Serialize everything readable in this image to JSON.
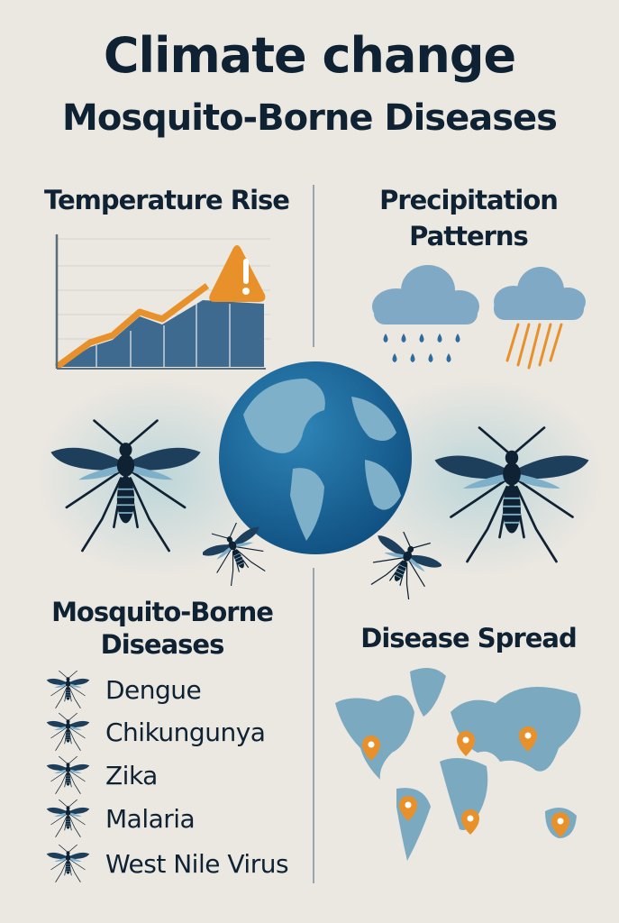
{
  "title": {
    "line1": "Climate change",
    "line2": "Mosquito-Borne Diseases"
  },
  "sections": {
    "temperature": {
      "heading": "Temperature Rise",
      "icon": "warning-icon"
    },
    "precipitation": {
      "heading_line1": "Precipitation",
      "heading_line2": "Patterns",
      "icons": [
        "rain-cloud-icon",
        "storm-cloud-icon"
      ]
    },
    "diseases": {
      "heading_line1": "Mosquito-Borne",
      "heading_line2": "Diseases",
      "items": [
        {
          "label": "Dengue"
        },
        {
          "label": "Chikungunya"
        },
        {
          "label": "Zika"
        },
        {
          "label": "Malaria"
        },
        {
          "label": "West Nile Virus"
        }
      ]
    },
    "spread": {
      "heading": "Disease Spread",
      "icon": "world-map-with-pins"
    }
  },
  "colors": {
    "navy": "#0f2233",
    "accent": "#e8912a",
    "blue": "#3f6a8f",
    "map": "#7aa9c0"
  }
}
